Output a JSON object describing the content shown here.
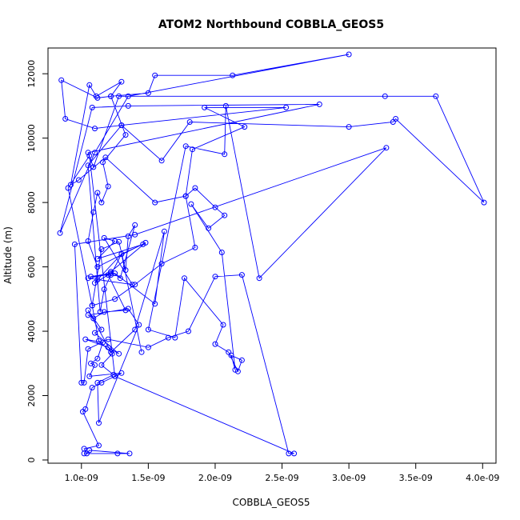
{
  "chart_data": {
    "type": "line",
    "title": "ATOM2 Northbound COBBLA_GEOS5",
    "xlabel": "COBBLA_GEOS5",
    "ylabel": "Altitude (m)",
    "xlim": [
      7.5e-10,
      4.1e-09
    ],
    "ylim": [
      -100,
      12800
    ],
    "x_ticks": [
      1e-09,
      1.5e-09,
      2e-09,
      2.5e-09,
      3e-09,
      3.5e-09,
      4e-09
    ],
    "x_tick_labels": [
      "1.0e-09",
      "1.5e-09",
      "2.0e-09",
      "2.5e-09",
      "3.0e-09",
      "3.5e-09",
      "4.0e-09"
    ],
    "y_ticks": [
      0,
      2000,
      4000,
      6000,
      8000,
      10000,
      12000
    ],
    "y_tick_labels": [
      "0",
      "2000",
      "4000",
      "6000",
      "8000",
      "10000",
      "12000"
    ],
    "marker": "open-circle",
    "grid": false,
    "colors": {
      "series": "#0000ff",
      "axis": "#000000",
      "background": "#ffffff"
    },
    "series": [
      {
        "x": [
          1.02e-09,
          1.27e-09,
          1.36e-09,
          1.06e-09,
          1.04e-09,
          1.02e-09,
          1.13e-09,
          1.01e-09,
          1.03e-09,
          1.08e-09,
          1.15e-09,
          1.3e-09,
          1.06e-09,
          1.1e-09,
          1.07e-09,
          1.12e-09,
          1.16e-09,
          1.03e-09,
          1.2e-09,
          1.28e-09,
          1.1e-09,
          1.15e-09,
          1.05e-09,
          1.23e-09,
          1.15e-09,
          1.24e-09,
          1.12e-09,
          1.13e-09,
          1.43e-09,
          1.35e-09,
          1.05e-09,
          1.09e-09,
          1.17e-09,
          1.33e-09,
          1.2e-09,
          1.07e-09,
          1.22e-09,
          1.1e-09,
          1.12e-09,
          1.3e-09,
          1.46e-09,
          1.12e-09,
          1.25e-09,
          1.17e-09,
          1.38e-09,
          1.05e-09,
          1.25e-09,
          1.55e-09,
          1.62e-09,
          1.4e-09,
          1.22e-09,
          1.13e-09,
          1.08e-09,
          1.15e-09,
          1.28e-09,
          1.33e-09,
          1.35e-09,
          1.4e-09,
          1.29e-09,
          1.22e-09,
          1.48e-09,
          1.12e-09,
          1.05e-09,
          1.09e-09,
          1.12e-09,
          1.15e-09,
          1.2e-09,
          1.16e-09,
          1.33e-09,
          1.22e-09,
          1.3e-09,
          1.11e-09,
          1.06e-09,
          9.2e-10,
          9.8e-10,
          1.18e-09,
          1.55e-09,
          1.78e-09,
          1.85e-09,
          2e-09,
          2.07e-09,
          1.95e-09,
          1.82e-09,
          2.05e-09,
          2.15e-09,
          2.12e-09,
          2.2e-09,
          2.17e-09,
          2.1e-09,
          2e-09,
          2.06e-09,
          1.77e-09,
          1.7e-09,
          1.5e-09,
          1.78e-09,
          2.07e-09,
          2.08e-09,
          2.33e-09,
          3.28e-09,
          1.4e-09,
          9.5e-10,
          1e-09,
          1.02e-09,
          1.05e-09,
          1.2e-09,
          1.5e-09,
          1.65e-09,
          1.8e-09,
          2e-09,
          2.2e-09,
          2.55e-09,
          2.59e-09,
          1.25e-09,
          1.06e-09,
          9e-10,
          1.08e-09,
          1.25e-09,
          1.4e-09,
          1.6e-09,
          1.85e-09,
          1.78e-09,
          1.83e-09,
          2.22e-09,
          1.92e-09,
          2.53e-09,
          1.3e-09,
          1.1e-09,
          8.8e-10,
          8.5e-10,
          1.12e-09,
          1.22e-09,
          1.5e-09,
          1.55e-09,
          2.13e-09,
          3e-09,
          1.35e-09,
          1.1e-09,
          8.4e-10,
          1.08e-09,
          1.35e-09,
          2.78e-09,
          1.05e-09,
          1.09e-09,
          1.28e-09,
          3.27e-09,
          3.65e-09,
          4.01e-09,
          3.35e-09,
          3.33e-09,
          3e-09,
          1.81e-09,
          1.6e-09,
          1.3e-09,
          1.05e-09,
          1.14e-09,
          1.17e-09,
          1.22e-09,
          1.3e-09,
          1.45e-09
        ],
        "y": [
          200,
          200,
          200,
          300,
          200,
          350,
          450,
          1500,
          1580,
          2250,
          2400,
          2700,
          2600,
          2950,
          3000,
          3150,
          3650,
          3750,
          3500,
          3300,
          3950,
          4050,
          4650,
          3300,
          2950,
          2650,
          2400,
          1150,
          4200,
          4700,
          4500,
          4400,
          4600,
          4650,
          5750,
          5700,
          5800,
          5500,
          5600,
          6400,
          6700,
          6250,
          6800,
          6900,
          5450,
          5650,
          5800,
          4850,
          7100,
          4050,
          3350,
          3700,
          4800,
          6550,
          6780,
          5900,
          6950,
          7300,
          5650,
          5850,
          6750,
          6000,
          6800,
          7700,
          8300,
          8000,
          8500,
          9250,
          10100,
          11300,
          11750,
          11300,
          11650,
          8550,
          8700,
          9400,
          8000,
          8200,
          8450,
          7850,
          7600,
          7200,
          7950,
          6450,
          2800,
          3250,
          3100,
          2750,
          3350,
          3600,
          4200,
          5650,
          3800,
          4050,
          9750,
          9500,
          11000,
          5650,
          9700,
          7000,
          6700,
          2400,
          2400,
          3450,
          3750,
          3500,
          3800,
          4000,
          5700,
          5750,
          200,
          200,
          2600,
          9450,
          8450,
          4800,
          5000,
          5450,
          6100,
          6600,
          8200,
          9650,
          10350,
          10950,
          10950,
          10400,
          10300,
          10600,
          11800,
          11250,
          11300,
          11400,
          11950,
          11950,
          12600,
          11300,
          9550,
          7050,
          10950,
          11000,
          11050,
          9550,
          9100,
          11300,
          11300,
          11300,
          8000,
          10600,
          10500,
          10350,
          10500,
          9300,
          10400,
          9150,
          4600,
          5300,
          5750,
          6400,
          3350
        ]
      }
    ]
  }
}
